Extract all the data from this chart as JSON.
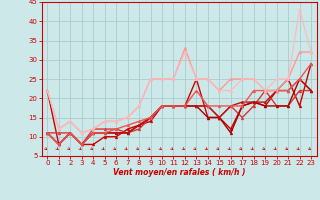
{
  "xlabel": "Vent moyen/en rafales ( km/h )",
  "background_color": "#cce8e8",
  "grid_color": "#aacccc",
  "axis_color": "#cc0000",
  "xlim": [
    -0.5,
    23.5
  ],
  "ylim": [
    5,
    45
  ],
  "yticks": [
    5,
    10,
    15,
    20,
    25,
    30,
    35,
    40,
    45
  ],
  "xticks": [
    0,
    1,
    2,
    3,
    4,
    5,
    6,
    7,
    8,
    9,
    10,
    11,
    12,
    13,
    14,
    15,
    16,
    17,
    18,
    19,
    20,
    21,
    22,
    23
  ],
  "series": [
    {
      "x": [
        0,
        1,
        2,
        3,
        4,
        5,
        6,
        7,
        8,
        9,
        10,
        11,
        12,
        13,
        14,
        15,
        16,
        17,
        18,
        19,
        20,
        21,
        22,
        23
      ],
      "y": [
        22,
        8,
        11,
        8,
        8,
        10,
        10,
        12,
        13,
        14,
        18,
        18,
        18,
        25,
        15,
        15,
        12,
        18,
        19,
        18,
        22,
        25,
        18,
        29
      ],
      "color": "#cc0000",
      "lw": 1.0,
      "marker": "^",
      "ms": 2.0
    },
    {
      "x": [
        0,
        1,
        2,
        3,
        4,
        5,
        6,
        7,
        8,
        9,
        10,
        11,
        12,
        13,
        14,
        15,
        16,
        17,
        18,
        19,
        20,
        21,
        22,
        23
      ],
      "y": [
        11,
        11,
        11,
        8,
        12,
        12,
        12,
        11,
        12,
        15,
        18,
        18,
        18,
        18,
        18,
        15,
        18,
        15,
        18,
        22,
        18,
        18,
        22,
        22
      ],
      "color": "#dd3333",
      "lw": 1.0,
      "marker": "^",
      "ms": 2.0
    },
    {
      "x": [
        0,
        1,
        2,
        3,
        4,
        5,
        6,
        7,
        8,
        9,
        10,
        11,
        12,
        13,
        14,
        15,
        16,
        17,
        18,
        19,
        20,
        21,
        22,
        23
      ],
      "y": [
        11,
        8,
        11,
        8,
        11,
        11,
        11,
        11,
        13,
        15,
        18,
        18,
        18,
        18,
        15,
        15,
        11,
        18,
        19,
        18,
        18,
        18,
        25,
        22
      ],
      "color": "#aa0000",
      "lw": 1.0,
      "marker": "^",
      "ms": 2.0
    },
    {
      "x": [
        0,
        1,
        2,
        3,
        4,
        5,
        6,
        7,
        8,
        9,
        10,
        11,
        12,
        13,
        14,
        15,
        16,
        17,
        18,
        19,
        20,
        21,
        22,
        23
      ],
      "y": [
        11,
        8,
        11,
        8,
        11,
        11,
        11,
        11,
        13,
        15,
        18,
        18,
        18,
        18,
        18,
        15,
        18,
        19,
        19,
        19,
        22,
        22,
        25,
        22
      ],
      "color": "#bb1111",
      "lw": 1.0,
      "marker": "^",
      "ms": 2.0
    },
    {
      "x": [
        0,
        1,
        2,
        3,
        4,
        5,
        6,
        7,
        8,
        9,
        10,
        11,
        12,
        13,
        14,
        15,
        16,
        17,
        18,
        19,
        20,
        21,
        22,
        23
      ],
      "y": [
        11,
        8,
        11,
        8,
        11,
        11,
        12,
        13,
        14,
        15,
        18,
        18,
        18,
        22,
        18,
        18,
        18,
        18,
        22,
        22,
        22,
        22,
        25,
        29
      ],
      "color": "#ee5555",
      "lw": 1.0,
      "marker": "^",
      "ms": 2.0
    },
    {
      "x": [
        0,
        1,
        2,
        3,
        4,
        5,
        6,
        7,
        8,
        9,
        10,
        11,
        12,
        13,
        14,
        15,
        16,
        17,
        18,
        19,
        20,
        21,
        22,
        23
      ],
      "y": [
        22,
        12,
        14,
        11,
        12,
        14,
        14,
        15,
        18,
        25,
        25,
        25,
        33,
        25,
        25,
        22,
        25,
        25,
        25,
        22,
        22,
        25,
        32,
        32
      ],
      "color": "#ff9999",
      "lw": 1.0,
      "marker": "^",
      "ms": 2.0
    },
    {
      "x": [
        0,
        1,
        2,
        3,
        4,
        5,
        6,
        7,
        8,
        9,
        10,
        11,
        12,
        13,
        14,
        15,
        16,
        17,
        18,
        19,
        20,
        21,
        22,
        23
      ],
      "y": [
        22,
        12,
        14,
        11,
        12,
        14,
        14,
        15,
        18,
        25,
        25,
        25,
        32,
        25,
        25,
        22,
        22,
        25,
        25,
        22,
        25,
        25,
        43,
        32
      ],
      "color": "#ffbbbb",
      "lw": 0.9,
      "marker": "^",
      "ms": 1.8
    }
  ],
  "font_color": "#cc0000"
}
